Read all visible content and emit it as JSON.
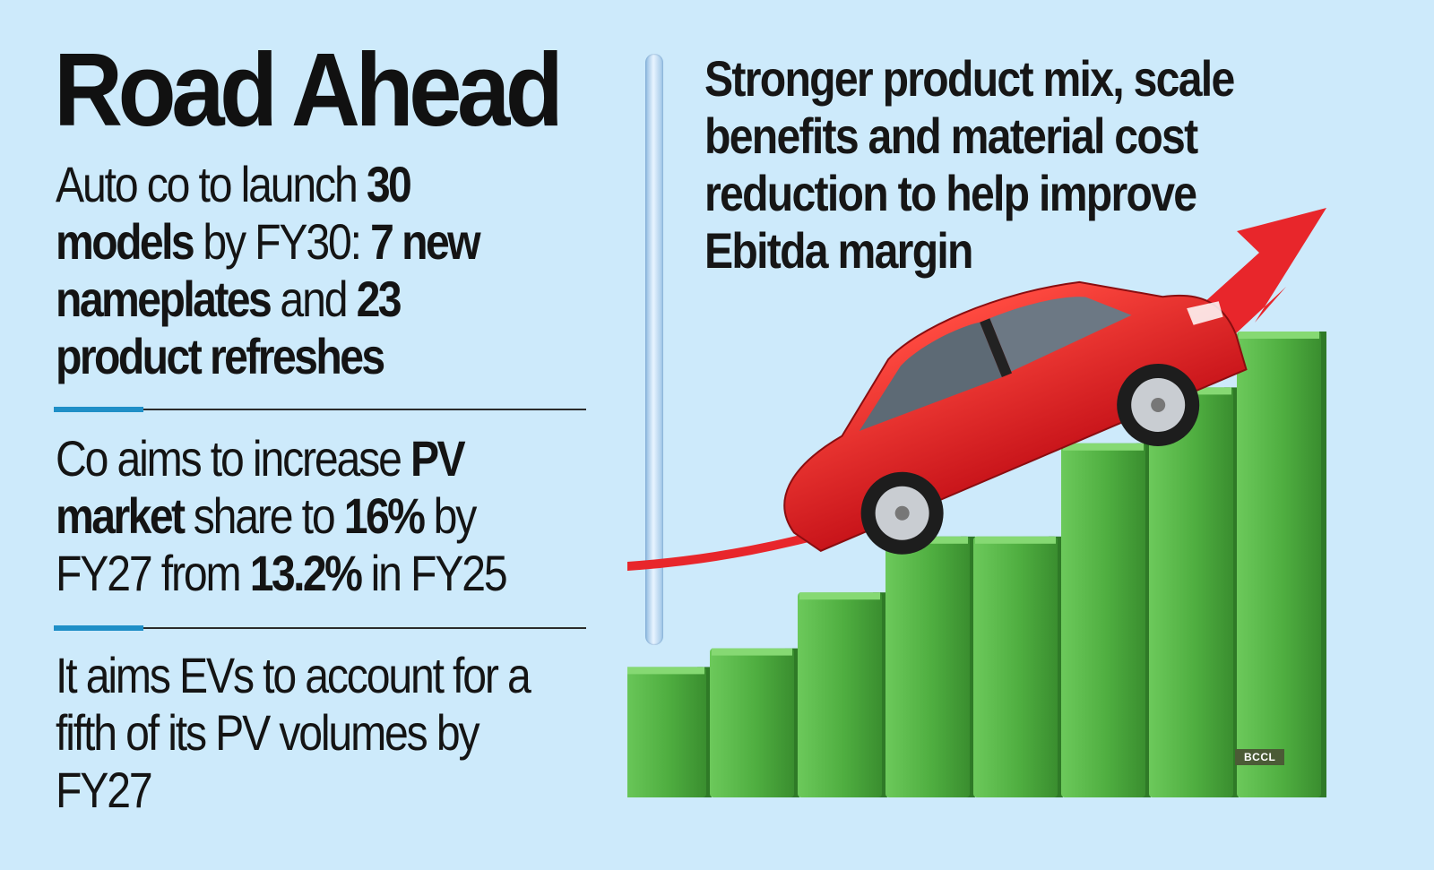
{
  "headline": "Road Ahead",
  "left_points": [
    [
      {
        "t": "Auto co to launch ",
        "b": false
      },
      {
        "t": "30 models",
        "b": true
      },
      {
        "t": " by FY30: ",
        "b": false
      },
      {
        "t": "7 new nameplates",
        "b": true
      },
      {
        "t": " and ",
        "b": false
      },
      {
        "t": "23 product refreshes",
        "b": true
      }
    ],
    [
      {
        "t": "Co aims to increase ",
        "b": false
      },
      {
        "t": "PV market",
        "b": true
      },
      {
        "t": " share to ",
        "b": false
      },
      {
        "t": "16%",
        "b": true
      },
      {
        "t": " by FY27 from ",
        "b": false
      },
      {
        "t": "13.2%",
        "b": true
      },
      {
        "t": " in FY25",
        "b": false
      }
    ],
    [
      {
        "t": "It aims EVs to account for a fifth of its PV volumes by FY27",
        "b": false
      }
    ]
  ],
  "right_heading": "Stronger product mix, scale benefits and material cost reduction to help improve Ebitda margin",
  "credit": "BCCL",
  "chart_data": {
    "type": "bar",
    "categories": [
      "",
      "",
      "",
      "",
      "",
      "",
      "",
      ""
    ],
    "values": [
      14,
      16,
      22,
      28,
      28,
      38,
      44,
      50
    ],
    "title": "",
    "xlabel": "",
    "ylabel": ""
  },
  "colors": {
    "background": "#cdeafb",
    "bar_green": "#55b847",
    "arrow_red": "#e8262b",
    "car_red": "#e0201f",
    "divider_accent": "#1f8fc7"
  }
}
